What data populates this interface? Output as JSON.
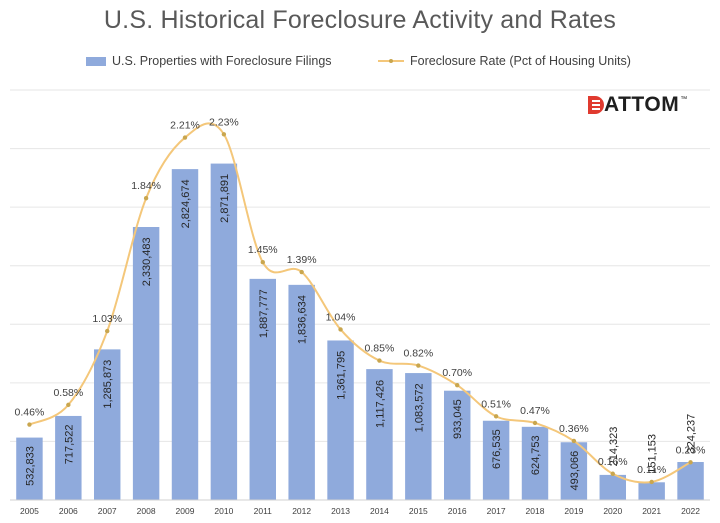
{
  "chart_data": {
    "type": "bar+line",
    "title": "U.S. Historical Foreclosure Activity and Rates",
    "categories": [
      "2005",
      "2006",
      "2007",
      "2008",
      "2009",
      "2010",
      "2011",
      "2012",
      "2013",
      "2014",
      "2015",
      "2016",
      "2017",
      "2018",
      "2019",
      "2020",
      "2021",
      "2022"
    ],
    "series": [
      {
        "name": "U.S. Properties with Foreclosure Filings",
        "kind": "bar",
        "color": "#8faadc",
        "values": [
          532833,
          717522,
          1285873,
          2330483,
          2824674,
          2871891,
          1887777,
          1836634,
          1361795,
          1117426,
          1083572,
          933045,
          676535,
          624753,
          493066,
          214323,
          151153,
          324237
        ],
        "labels": [
          "532,833",
          "717,522",
          "1,285,873",
          "2,330,483",
          "2,824,674",
          "2,871,891",
          "1,887,777",
          "1,836,634",
          "1,361,795",
          "1,117,426",
          "1,083,572",
          "933,045",
          "676,535",
          "624,753",
          "493,066",
          "214,323",
          "151,153",
          "324,237"
        ]
      },
      {
        "name": "Foreclosure Rate (Pct of Housing Units)",
        "kind": "line",
        "color": "#f4c77a",
        "marker_color": "#c9a64e",
        "values": [
          0.46,
          0.58,
          1.03,
          1.84,
          2.21,
          2.23,
          1.45,
          1.39,
          1.04,
          0.85,
          0.82,
          0.7,
          0.51,
          0.47,
          0.36,
          0.16,
          0.11,
          0.23
        ],
        "labels": [
          "0.46%",
          "0.58%",
          "1.03%",
          "1.84%",
          "2.21%",
          "2.23%",
          "1.45%",
          "1.39%",
          "1.04%",
          "0.85%",
          "0.82%",
          "0.70%",
          "0.51%",
          "0.47%",
          "0.36%",
          "0.16%",
          "0.11%",
          "0.23%"
        ]
      }
    ],
    "bar_axis_range": [
      0,
      3500000
    ],
    "rate_axis_range": [
      0,
      2.5
    ],
    "gridlines": true,
    "legend_position": "top"
  },
  "logo": {
    "text": "ATTOM",
    "tm": "™",
    "color": "#e03a2f"
  }
}
